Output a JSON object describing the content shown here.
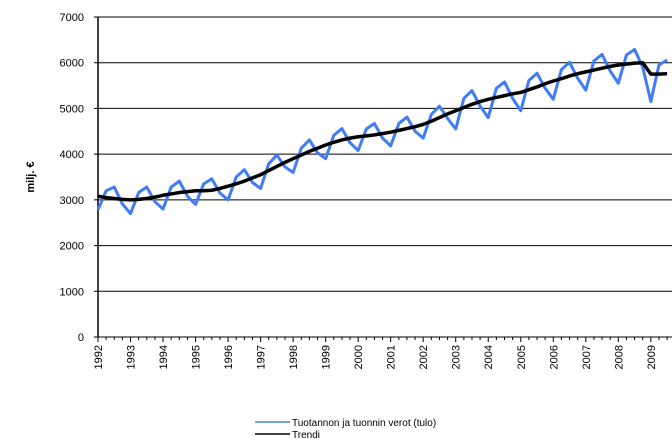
{
  "chart_data": {
    "type": "line",
    "y_label": "milj. €",
    "categories": [
      "1992",
      null,
      null,
      null,
      "1993",
      null,
      null,
      null,
      "1994",
      null,
      null,
      null,
      "1995",
      null,
      null,
      null,
      "1996",
      null,
      null,
      null,
      "1997",
      null,
      null,
      null,
      "1998",
      null,
      null,
      null,
      "1999",
      null,
      null,
      null,
      "2000",
      null,
      null,
      null,
      "2001",
      null,
      null,
      null,
      "2002",
      null,
      null,
      null,
      "2003",
      null,
      null,
      null,
      "2004",
      null,
      null,
      null,
      "2005",
      null,
      null,
      null,
      "2006",
      null,
      null,
      null,
      "2007",
      null,
      null,
      null,
      "2008",
      null,
      null,
      null,
      "2009",
      null,
      null
    ],
    "series": [
      {
        "name": "Tuotannon ja tuonnin verot (tulo)",
        "color": "#3f7cf5",
        "width": 3,
        "values": [
          2780,
          3200,
          3280,
          2910,
          2700,
          3160,
          3280,
          2960,
          2800,
          3280,
          3410,
          3080,
          2900,
          3350,
          3460,
          3150,
          3000,
          3500,
          3660,
          3380,
          3250,
          3790,
          3980,
          3720,
          3600,
          4130,
          4310,
          4030,
          3900,
          4410,
          4560,
          4250,
          4080,
          4550,
          4670,
          4350,
          4180,
          4670,
          4810,
          4500,
          4350,
          4870,
          5050,
          4780,
          4550,
          5220,
          5390,
          5050,
          4800,
          5440,
          5580,
          5220,
          4950,
          5610,
          5770,
          5440,
          5200,
          5850,
          6010,
          5660,
          5400,
          6040,
          6180,
          5820,
          5550,
          6170,
          6290,
          5900,
          5150,
          5950,
          6060
        ]
      },
      {
        "name": "Trendi",
        "color": "#000000",
        "width": 3.5,
        "values": [
          3080,
          3050,
          3030,
          3010,
          3000,
          3010,
          3030,
          3060,
          3100,
          3130,
          3160,
          3180,
          3200,
          3200,
          3210,
          3250,
          3300,
          3350,
          3410,
          3480,
          3550,
          3640,
          3730,
          3820,
          3900,
          3980,
          4060,
          4130,
          4200,
          4260,
          4310,
          4350,
          4380,
          4400,
          4420,
          4450,
          4480,
          4520,
          4560,
          4600,
          4650,
          4720,
          4800,
          4880,
          4950,
          5020,
          5090,
          5150,
          5200,
          5240,
          5280,
          5320,
          5350,
          5410,
          5470,
          5540,
          5600,
          5650,
          5710,
          5760,
          5800,
          5840,
          5880,
          5920,
          5950,
          5970,
          5990,
          6000,
          5750,
          5750,
          5760
        ]
      }
    ],
    "ylim": [
      0,
      7000
    ],
    "yticks": [
      0,
      1000,
      2000,
      3000,
      4000,
      5000,
      6000,
      7000
    ],
    "grid": true
  }
}
